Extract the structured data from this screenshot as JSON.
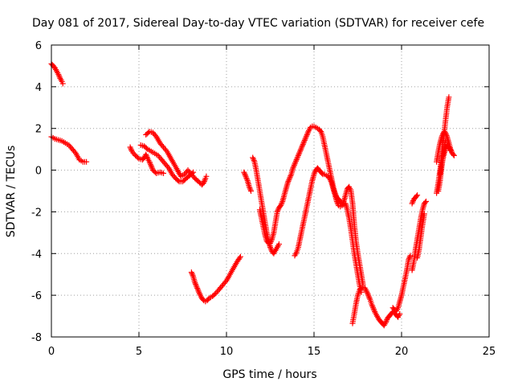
{
  "chart_data": {
    "type": "scatter",
    "title": "Day 081 of 2017, Sidereal Day-to-day VTEC variation (SDTVAR) for receiver cefe",
    "xlabel": "GPS time / hours",
    "ylabel": "SDTVAR / TECUs",
    "xlim": [
      0,
      25
    ],
    "ylim": [
      -8,
      6
    ],
    "xticks": [
      "0",
      "5",
      "10",
      "15",
      "20",
      "25"
    ],
    "yticks": [
      "-8",
      "-6",
      "-4",
      "-2",
      "0",
      "2",
      "4",
      "6"
    ],
    "grid": true,
    "marker": "plus",
    "color": "#ff0000",
    "segments": [
      [
        [
          0.0,
          5.1
        ],
        [
          0.1,
          5.0
        ],
        [
          0.2,
          4.9
        ],
        [
          0.3,
          4.75
        ],
        [
          0.4,
          4.6
        ],
        [
          0.5,
          4.4
        ],
        [
          0.6,
          4.25
        ],
        [
          0.65,
          4.15
        ]
      ],
      [
        [
          0.0,
          1.6
        ],
        [
          0.2,
          1.5
        ],
        [
          0.4,
          1.45
        ],
        [
          0.6,
          1.4
        ],
        [
          0.8,
          1.3
        ],
        [
          1.0,
          1.2
        ],
        [
          1.2,
          1.0
        ],
        [
          1.4,
          0.8
        ],
        [
          1.6,
          0.5
        ],
        [
          1.8,
          0.4
        ],
        [
          2.0,
          0.4
        ]
      ],
      [
        [
          4.5,
          1.1
        ],
        [
          4.6,
          0.9
        ],
        [
          4.8,
          0.7
        ],
        [
          5.0,
          0.55
        ],
        [
          5.2,
          0.5
        ],
        [
          5.3,
          0.6
        ],
        [
          5.4,
          0.75
        ],
        [
          5.5,
          0.55
        ],
        [
          5.6,
          0.4
        ],
        [
          5.7,
          0.2
        ],
        [
          5.8,
          0.0
        ],
        [
          6.0,
          -0.15
        ],
        [
          6.2,
          -0.1
        ],
        [
          6.4,
          -0.15
        ]
      ],
      [
        [
          5.1,
          1.2
        ],
        [
          5.3,
          1.15
        ],
        [
          5.5,
          1.0
        ],
        [
          5.7,
          0.9
        ],
        [
          5.9,
          0.8
        ],
        [
          6.1,
          0.7
        ],
        [
          6.3,
          0.5
        ],
        [
          6.5,
          0.3
        ],
        [
          6.7,
          0.1
        ],
        [
          6.9,
          -0.2
        ],
        [
          7.1,
          -0.4
        ],
        [
          7.3,
          -0.55
        ],
        [
          7.5,
          -0.55
        ],
        [
          7.7,
          -0.4
        ],
        [
          7.9,
          -0.25
        ],
        [
          8.1,
          -0.1
        ]
      ],
      [
        [
          5.4,
          1.7
        ],
        [
          5.6,
          1.85
        ],
        [
          5.8,
          1.8
        ],
        [
          6.0,
          1.6
        ],
        [
          6.2,
          1.3
        ],
        [
          6.4,
          1.1
        ],
        [
          6.6,
          0.9
        ],
        [
          6.8,
          0.6
        ],
        [
          7.0,
          0.3
        ],
        [
          7.2,
          0.0
        ],
        [
          7.4,
          -0.3
        ],
        [
          7.6,
          -0.2
        ],
        [
          7.8,
          0.0
        ],
        [
          8.0,
          -0.2
        ],
        [
          8.2,
          -0.4
        ],
        [
          8.4,
          -0.55
        ],
        [
          8.6,
          -0.7
        ],
        [
          8.7,
          -0.6
        ],
        [
          8.8,
          -0.4
        ],
        [
          8.85,
          -0.3
        ]
      ],
      [
        [
          8.0,
          -4.9
        ],
        [
          8.1,
          -5.1
        ],
        [
          8.2,
          -5.4
        ],
        [
          8.3,
          -5.6
        ],
        [
          8.4,
          -5.8
        ],
        [
          8.5,
          -6.0
        ],
        [
          8.6,
          -6.15
        ],
        [
          8.7,
          -6.25
        ],
        [
          8.8,
          -6.3
        ],
        [
          8.9,
          -6.25
        ],
        [
          9.0,
          -6.15
        ],
        [
          9.2,
          -6.05
        ],
        [
          9.4,
          -5.9
        ],
        [
          9.6,
          -5.7
        ],
        [
          9.8,
          -5.5
        ],
        [
          10.0,
          -5.3
        ],
        [
          10.2,
          -5.0
        ],
        [
          10.4,
          -4.7
        ],
        [
          10.6,
          -4.4
        ],
        [
          10.8,
          -4.15
        ]
      ],
      [
        [
          11.0,
          -0.1
        ],
        [
          11.1,
          -0.3
        ],
        [
          11.2,
          -0.5
        ],
        [
          11.3,
          -0.8
        ],
        [
          11.4,
          -1.0
        ]
      ],
      [
        [
          11.5,
          0.6
        ],
        [
          11.6,
          0.4
        ],
        [
          11.7,
          0.0
        ],
        [
          11.8,
          -0.5
        ],
        [
          11.9,
          -1.0
        ],
        [
          12.0,
          -1.5
        ],
        [
          12.1,
          -2.0
        ],
        [
          12.2,
          -2.5
        ],
        [
          12.3,
          -3.0
        ],
        [
          12.4,
          -3.4
        ],
        [
          12.5,
          -3.7
        ],
        [
          12.6,
          -3.9
        ],
        [
          12.7,
          -4.0
        ],
        [
          12.8,
          -3.85
        ],
        [
          12.9,
          -3.7
        ],
        [
          13.0,
          -3.55
        ]
      ],
      [
        [
          11.9,
          -1.9
        ],
        [
          12.0,
          -2.3
        ],
        [
          12.1,
          -2.7
        ],
        [
          12.2,
          -3.1
        ],
        [
          12.3,
          -3.4
        ],
        [
          12.4,
          -3.5
        ],
        [
          12.5,
          -3.5
        ],
        [
          12.6,
          -3.3
        ],
        [
          12.7,
          -3.0
        ],
        [
          12.8,
          -2.5
        ],
        [
          12.9,
          -2.0
        ],
        [
          13.0,
          -1.8
        ],
        [
          13.1,
          -1.7
        ],
        [
          13.2,
          -1.5
        ],
        [
          13.3,
          -1.2
        ],
        [
          13.4,
          -0.9
        ],
        [
          13.5,
          -0.6
        ],
        [
          13.6,
          -0.4
        ],
        [
          13.7,
          -0.2
        ],
        [
          13.8,
          0.1
        ],
        [
          13.9,
          0.3
        ],
        [
          14.0,
          0.5
        ],
        [
          14.1,
          0.7
        ],
        [
          14.2,
          0.9
        ],
        [
          14.3,
          1.1
        ],
        [
          14.4,
          1.3
        ],
        [
          14.5,
          1.5
        ],
        [
          14.6,
          1.7
        ],
        [
          14.7,
          1.9
        ],
        [
          14.8,
          2.05
        ],
        [
          14.9,
          2.1
        ],
        [
          15.0,
          2.1
        ],
        [
          15.1,
          2.05
        ],
        [
          15.2,
          2.0
        ],
        [
          15.3,
          1.95
        ],
        [
          15.4,
          1.85
        ]
      ],
      [
        [
          13.9,
          -4.1
        ],
        [
          14.0,
          -3.95
        ],
        [
          14.1,
          -3.7
        ],
        [
          14.2,
          -3.3
        ],
        [
          14.3,
          -2.9
        ],
        [
          14.4,
          -2.5
        ],
        [
          14.5,
          -2.1
        ],
        [
          14.6,
          -1.7
        ],
        [
          14.7,
          -1.3
        ],
        [
          14.8,
          -0.9
        ],
        [
          14.9,
          -0.5
        ],
        [
          15.0,
          -0.2
        ],
        [
          15.1,
          0.0
        ],
        [
          15.2,
          0.1
        ],
        [
          15.3,
          0.0
        ],
        [
          15.4,
          -0.1
        ],
        [
          15.5,
          -0.2
        ],
        [
          15.6,
          -0.2
        ],
        [
          15.7,
          -0.25
        ],
        [
          15.8,
          -0.3
        ],
        [
          15.9,
          -0.4
        ]
      ],
      [
        [
          15.4,
          1.85
        ],
        [
          15.5,
          1.6
        ],
        [
          15.6,
          1.2
        ],
        [
          15.7,
          0.8
        ],
        [
          15.8,
          0.4
        ],
        [
          15.9,
          0.0
        ],
        [
          16.0,
          -0.4
        ],
        [
          16.1,
          -0.8
        ],
        [
          16.2,
          -1.1
        ],
        [
          16.3,
          -1.3
        ],
        [
          16.4,
          -1.4
        ],
        [
          16.5,
          -1.5
        ],
        [
          16.6,
          -1.6
        ],
        [
          16.7,
          -1.65
        ]
      ],
      [
        [
          15.9,
          -0.4
        ],
        [
          16.0,
          -0.6
        ],
        [
          16.1,
          -0.9
        ],
        [
          16.2,
          -1.2
        ],
        [
          16.3,
          -1.5
        ],
        [
          16.4,
          -1.7
        ],
        [
          16.5,
          -1.75
        ],
        [
          16.6,
          -1.7
        ],
        [
          16.7,
          -1.5
        ],
        [
          16.8,
          -1.2
        ],
        [
          16.9,
          -0.9
        ],
        [
          17.0,
          -0.8
        ],
        [
          17.1,
          -0.95
        ],
        [
          17.2,
          -1.6
        ],
        [
          17.3,
          -2.6
        ],
        [
          17.4,
          -3.4
        ],
        [
          17.5,
          -4.0
        ],
        [
          17.6,
          -4.5
        ],
        [
          17.7,
          -5.0
        ],
        [
          17.8,
          -5.5
        ]
      ],
      [
        [
          16.8,
          -1.6
        ],
        [
          16.9,
          -1.9
        ],
        [
          17.0,
          -2.3
        ],
        [
          17.1,
          -2.8
        ],
        [
          17.2,
          -3.4
        ],
        [
          17.3,
          -4.0
        ],
        [
          17.4,
          -4.5
        ],
        [
          17.5,
          -5.0
        ],
        [
          17.6,
          -5.5
        ],
        [
          17.7,
          -5.85
        ]
      ],
      [
        [
          17.2,
          -7.35
        ],
        [
          17.3,
          -6.9
        ],
        [
          17.4,
          -6.4
        ],
        [
          17.5,
          -6.0
        ],
        [
          17.6,
          -5.75
        ],
        [
          17.7,
          -5.65
        ],
        [
          17.8,
          -5.6
        ],
        [
          17.9,
          -5.65
        ],
        [
          18.0,
          -5.8
        ],
        [
          18.1,
          -6.0
        ],
        [
          18.2,
          -6.2
        ],
        [
          18.3,
          -6.45
        ],
        [
          18.4,
          -6.65
        ],
        [
          18.5,
          -6.85
        ],
        [
          18.6,
          -7.0
        ],
        [
          18.7,
          -7.15
        ],
        [
          18.8,
          -7.25
        ],
        [
          18.9,
          -7.35
        ],
        [
          19.0,
          -7.45
        ],
        [
          19.1,
          -7.3
        ],
        [
          19.2,
          -7.1
        ],
        [
          19.3,
          -7.0
        ],
        [
          19.4,
          -6.9
        ],
        [
          19.5,
          -6.8
        ],
        [
          19.6,
          -6.85
        ],
        [
          19.7,
          -6.95
        ],
        [
          19.8,
          -7.05
        ],
        [
          19.9,
          -6.9
        ]
      ],
      [
        [
          19.5,
          -6.6
        ],
        [
          19.6,
          -6.7
        ],
        [
          19.7,
          -6.75
        ],
        [
          19.8,
          -6.6
        ],
        [
          19.9,
          -6.3
        ],
        [
          20.0,
          -6.0
        ],
        [
          20.1,
          -5.6
        ],
        [
          20.2,
          -5.2
        ],
        [
          20.3,
          -4.8
        ],
        [
          20.4,
          -4.3
        ],
        [
          20.5,
          -4.1
        ]
      ],
      [
        [
          20.6,
          -4.8
        ],
        [
          20.7,
          -4.4
        ],
        [
          20.8,
          -3.8
        ],
        [
          20.9,
          -3.3
        ],
        [
          21.0,
          -2.8
        ],
        [
          21.1,
          -2.3
        ],
        [
          21.2,
          -1.9
        ],
        [
          21.3,
          -1.6
        ],
        [
          21.4,
          -1.5
        ]
      ],
      [
        [
          20.6,
          -1.6
        ],
        [
          20.7,
          -1.4
        ],
        [
          20.8,
          -1.3
        ],
        [
          20.9,
          -1.2
        ]
      ],
      [
        [
          20.9,
          -4.2
        ],
        [
          21.0,
          -3.8
        ],
        [
          21.1,
          -3.2
        ],
        [
          21.2,
          -2.6
        ],
        [
          21.3,
          -2.1
        ]
      ],
      [
        [
          22.0,
          -1.1
        ],
        [
          22.1,
          -0.6
        ],
        [
          22.2,
          0.0
        ],
        [
          22.3,
          0.8
        ],
        [
          22.4,
          1.5
        ],
        [
          22.5,
          2.3
        ],
        [
          22.6,
          3.0
        ],
        [
          22.7,
          3.5
        ]
      ],
      [
        [
          22.1,
          -1.0
        ],
        [
          22.2,
          -0.5
        ],
        [
          22.3,
          0.2
        ],
        [
          22.4,
          0.9
        ],
        [
          22.5,
          1.4
        ]
      ],
      [
        [
          22.0,
          0.4
        ],
        [
          22.1,
          0.9
        ],
        [
          22.2,
          1.3
        ],
        [
          22.3,
          1.6
        ],
        [
          22.4,
          1.8
        ],
        [
          22.5,
          1.8
        ],
        [
          22.6,
          1.6
        ],
        [
          22.7,
          1.3
        ],
        [
          22.8,
          1.0
        ],
        [
          22.9,
          0.8
        ],
        [
          23.0,
          0.7
        ]
      ],
      [
        [
          22.2,
          -0.2
        ],
        [
          22.3,
          0.3
        ],
        [
          22.4,
          0.7
        ],
        [
          22.5,
          1.0
        ],
        [
          22.6,
          1.2
        ],
        [
          22.7,
          1.1
        ],
        [
          22.8,
          0.95
        ]
      ]
    ]
  }
}
